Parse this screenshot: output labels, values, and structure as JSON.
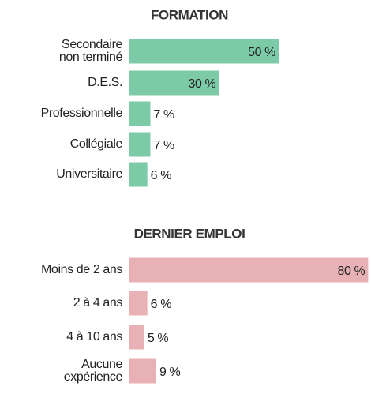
{
  "chart_data": [
    {
      "type": "bar",
      "title": "FORMATION",
      "categories": [
        "Secondaire\nnon terminé",
        "D.E.S.",
        "Professionnelle",
        "Collégiale",
        "Universitaire"
      ],
      "values": [
        50,
        30,
        7,
        7,
        6
      ],
      "value_labels": [
        "50 %",
        "30 %",
        "7 %",
        "7 %",
        "6 %"
      ],
      "color": "#7dcba6"
    },
    {
      "type": "bar",
      "title": "DERNIER EMPLOI",
      "categories": [
        "Moins de 2 ans",
        "2 à 4 ans",
        "4 à 10 ans",
        "Aucune\nexpérience"
      ],
      "values": [
        80,
        6,
        5,
        9
      ],
      "value_labels": [
        "80 %",
        "6 %",
        "5 %",
        "9 %"
      ],
      "color": "#e8b1b5"
    }
  ]
}
